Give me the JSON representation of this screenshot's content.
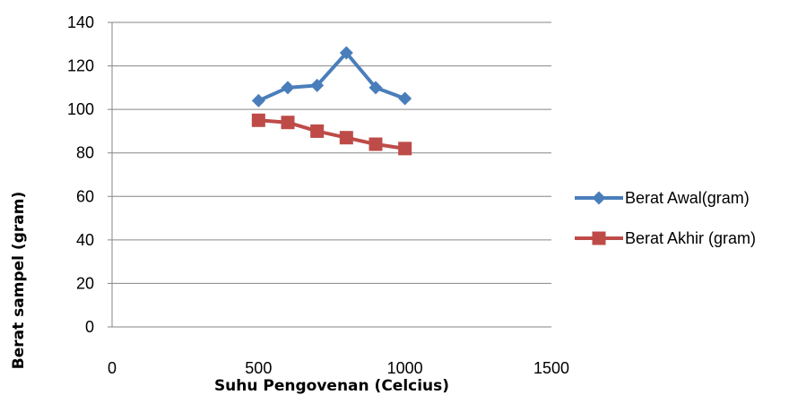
{
  "chart_data": {
    "type": "line",
    "title": "",
    "xlabel": "Suhu Pengovenan (Celcius)",
    "ylabel": "Berat sampel (gram)",
    "xlim": [
      0,
      1500
    ],
    "ylim": [
      0,
      140
    ],
    "xticks": [
      0,
      500,
      1000,
      1500
    ],
    "yticks": [
      0,
      20,
      40,
      60,
      80,
      100,
      120,
      140
    ],
    "grid": "horizontal",
    "legend_position": "right",
    "series": [
      {
        "name": "Berat Awal(gram)",
        "color": "#4a7ebb",
        "marker": "diamond",
        "x": [
          500,
          600,
          700,
          800,
          900,
          1000
        ],
        "y": [
          104,
          110,
          111,
          126,
          110,
          105
        ]
      },
      {
        "name": "Berat Akhir (gram)",
        "color": "#be4b48",
        "marker": "square",
        "x": [
          500,
          600,
          700,
          800,
          900,
          1000
        ],
        "y": [
          95,
          94,
          90,
          87,
          84,
          82
        ]
      }
    ]
  }
}
